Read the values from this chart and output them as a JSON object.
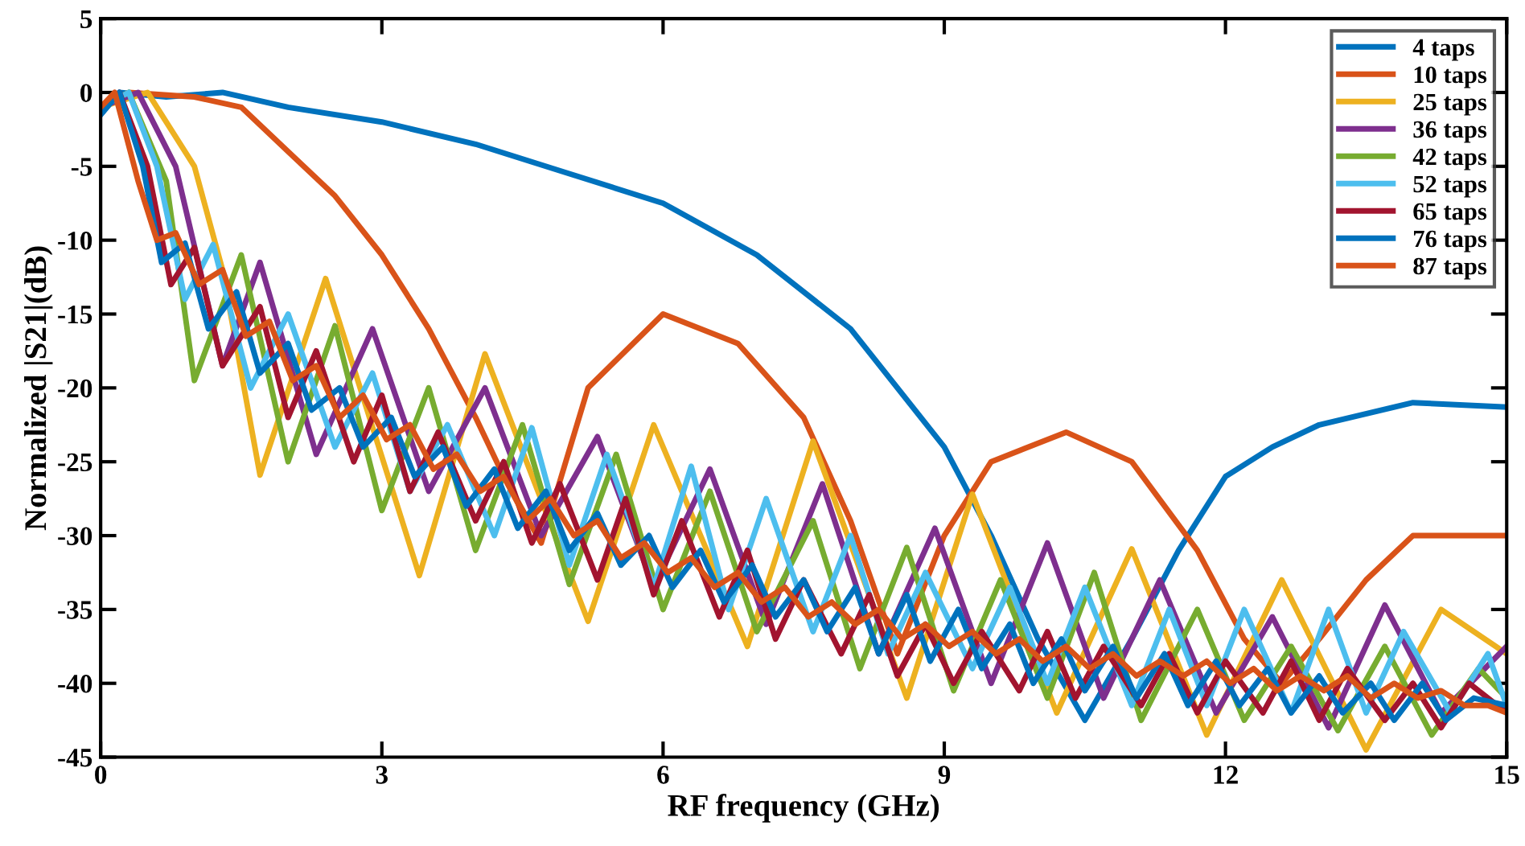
{
  "chart_data": {
    "type": "line",
    "xlabel": "RF frequency (GHz)",
    "ylabel": "Normalized |S21|(dB)",
    "xlim": [
      0,
      15
    ],
    "ylim": [
      -45,
      5
    ],
    "xticks": [
      0,
      3,
      6,
      9,
      12,
      15
    ],
    "yticks": [
      -45,
      -40,
      -35,
      -30,
      -25,
      -20,
      -15,
      -10,
      -5,
      0,
      5
    ],
    "grid": false,
    "legend": "top right",
    "marker": "none",
    "line_style": "solid",
    "series": [
      {
        "name": "4 taps",
        "color": "#0072bd",
        "x": [
          0,
          0.2,
          0.7,
          1.3,
          2,
          3,
          4,
          5,
          6,
          7,
          8,
          9,
          9.5,
          10,
          10.5,
          11,
          11.5,
          12,
          12.5,
          13,
          14,
          15
        ],
        "values": [
          -1.5,
          0,
          -0.3,
          0,
          -1,
          -2,
          -3.5,
          -5.5,
          -7.5,
          -11,
          -16,
          -24,
          -30,
          -37,
          -42.5,
          -37,
          -31,
          -26,
          -24,
          -22.5,
          -21,
          -21.3
        ]
      },
      {
        "name": "10 taps",
        "color": "#d95319",
        "x": [
          0,
          0.3,
          1,
          1.5,
          2,
          2.5,
          3,
          3.5,
          4,
          4.3,
          4.7,
          5.2,
          6,
          6.8,
          7.5,
          8,
          8.5,
          9,
          9.5,
          10.3,
          11,
          11.7,
          12.2,
          12.6,
          13,
          13.5,
          14,
          15
        ],
        "values": [
          -1,
          0,
          -0.3,
          -1,
          -4,
          -7,
          -11,
          -16,
          -22,
          -26,
          -30.5,
          -20,
          -15,
          -17,
          -22,
          -29,
          -38,
          -30,
          -25,
          -23,
          -25,
          -31,
          -37,
          -40,
          -37,
          -33,
          -30,
          -30
        ]
      },
      {
        "name": "25 taps",
        "color": "#edb120",
        "x": [
          0,
          0.5,
          1,
          1.3,
          1.7,
          2.4,
          3.4,
          4.1,
          5.2,
          5.9,
          6.9,
          7.6,
          8.6,
          9.3,
          10.2,
          11,
          11.8,
          12.6,
          13.5,
          14.3,
          15
        ],
        "values": [
          -1,
          0,
          -5,
          -12,
          -25.9,
          -12.6,
          -32.7,
          -17.7,
          -35.8,
          -22.5,
          -37.5,
          -23.6,
          -41,
          -27.2,
          -42,
          -30.9,
          -43.5,
          -33,
          -44.5,
          -35,
          -38
        ]
      },
      {
        "name": "36 taps",
        "color": "#7e2f8e",
        "x": [
          0,
          0.4,
          0.8,
          1.3,
          1.7,
          2.3,
          2.9,
          3.5,
          4.1,
          4.7,
          5.3,
          5.9,
          6.5,
          7.1,
          7.7,
          8.3,
          8.9,
          9.5,
          10.1,
          10.7,
          11.3,
          11.9,
          12.5,
          13.1,
          13.7,
          14.3,
          15
        ],
        "values": [
          -1,
          0,
          -5,
          -18.5,
          -11.5,
          -24.5,
          -16,
          -27,
          -20,
          -30,
          -23.3,
          -33.5,
          -25.5,
          -36,
          -26.5,
          -38,
          -29.5,
          -40,
          -30.5,
          -41,
          -33,
          -42,
          -35.5,
          -43,
          -34.7,
          -42,
          -37.5
        ]
      },
      {
        "name": "42 taps",
        "color": "#77ac30",
        "x": [
          0,
          0.3,
          0.7,
          1,
          1.5,
          2,
          2.5,
          3,
          3.5,
          4,
          4.5,
          5,
          5.5,
          6,
          6.5,
          7,
          7.6,
          8.1,
          8.6,
          9.1,
          9.6,
          10.1,
          10.6,
          11.1,
          11.7,
          12.2,
          12.7,
          13.2,
          13.7,
          14.2,
          14.7,
          15
        ],
        "values": [
          -1,
          0,
          -6,
          -19.5,
          -11,
          -25,
          -15.8,
          -28.3,
          -20,
          -31,
          -22.5,
          -33.3,
          -24.5,
          -35,
          -27,
          -36.5,
          -29,
          -39,
          -30.8,
          -40.5,
          -33,
          -41,
          -32.5,
          -42.5,
          -35,
          -42.5,
          -37.5,
          -43.2,
          -37.5,
          -43.5,
          -39,
          -41
        ]
      },
      {
        "name": "52 taps",
        "color": "#4dbeee",
        "x": [
          0,
          0.3,
          0.6,
          0.9,
          1.2,
          1.6,
          2,
          2.5,
          2.9,
          3.3,
          3.7,
          4.2,
          4.6,
          5,
          5.4,
          5.9,
          6.3,
          6.7,
          7.1,
          7.6,
          8,
          8.4,
          8.8,
          9.3,
          9.7,
          10.1,
          10.5,
          11,
          11.4,
          11.8,
          12.2,
          12.7,
          13.1,
          13.5,
          13.9,
          14.4,
          14.8,
          15
        ],
        "values": [
          -1,
          0,
          -5,
          -14,
          -10.3,
          -20,
          -15,
          -24,
          -19,
          -27,
          -22.5,
          -30,
          -22.7,
          -32,
          -24.5,
          -33.5,
          -25.3,
          -35,
          -27.5,
          -36.5,
          -30,
          -38,
          -32.5,
          -39,
          -33.5,
          -40,
          -33.5,
          -41.5,
          -35,
          -41.5,
          -35,
          -42,
          -35,
          -42,
          -36.5,
          -42,
          -38,
          -41.5
        ]
      },
      {
        "name": "65 taps",
        "color": "#a2142f",
        "x": [
          0,
          0.2,
          0.5,
          0.75,
          1,
          1.3,
          1.7,
          2,
          2.3,
          2.7,
          3,
          3.3,
          3.6,
          4,
          4.3,
          4.6,
          4.9,
          5.3,
          5.6,
          5.9,
          6.2,
          6.6,
          6.9,
          7.2,
          7.5,
          7.9,
          8.2,
          8.5,
          8.8,
          9.1,
          9.4,
          9.8,
          10.1,
          10.4,
          10.7,
          11.1,
          11.4,
          11.7,
          12,
          12.4,
          12.7,
          13,
          13.3,
          13.7,
          14,
          14.3,
          14.6,
          15
        ],
        "values": [
          -1,
          0,
          -5,
          -13,
          -10.5,
          -18.5,
          -14.5,
          -22,
          -17.5,
          -25,
          -20.5,
          -27,
          -23,
          -29,
          -25,
          -30.5,
          -26.5,
          -33,
          -27.5,
          -34,
          -29,
          -35.5,
          -31,
          -37,
          -33,
          -38,
          -34,
          -39.5,
          -36,
          -40,
          -36.5,
          -40.5,
          -36.5,
          -41,
          -37.5,
          -41.5,
          -38,
          -42,
          -38.5,
          -42,
          -38.5,
          -42.5,
          -39,
          -42.5,
          -40,
          -43,
          -40,
          -42
        ]
      },
      {
        "name": "76 taps",
        "color": "#0072bd",
        "x": [
          0,
          0.2,
          0.45,
          0.65,
          0.9,
          1.15,
          1.45,
          1.7,
          2,
          2.25,
          2.55,
          2.8,
          3.1,
          3.35,
          3.65,
          3.9,
          4.2,
          4.45,
          4.75,
          5,
          5.3,
          5.55,
          5.85,
          6.1,
          6.4,
          6.65,
          6.95,
          7.2,
          7.5,
          7.75,
          8.05,
          8.3,
          8.6,
          8.85,
          9.15,
          9.4,
          9.7,
          9.95,
          10.25,
          10.5,
          10.8,
          11.05,
          11.35,
          11.6,
          11.9,
          12.15,
          12.45,
          12.7,
          13,
          13.25,
          13.55,
          13.8,
          14.1,
          14.35,
          14.65,
          15
        ],
        "values": [
          -1.5,
          0,
          -5,
          -11.5,
          -10.2,
          -16,
          -13.5,
          -19,
          -17,
          -21.5,
          -20,
          -24,
          -22,
          -26,
          -24,
          -28,
          -25.5,
          -29.5,
          -27,
          -31,
          -28.5,
          -32,
          -30,
          -33.5,
          -31,
          -34.5,
          -32,
          -35.5,
          -33,
          -36.5,
          -33.5,
          -38,
          -34,
          -38.5,
          -35,
          -39,
          -36,
          -40,
          -37,
          -40.5,
          -37.5,
          -41,
          -38,
          -41.5,
          -38.5,
          -41.5,
          -39,
          -42,
          -39.5,
          -42,
          -40,
          -42.5,
          -40,
          -42.5,
          -41,
          -41.5
        ]
      },
      {
        "name": "87 taps",
        "color": "#d95319",
        "x": [
          0,
          0.15,
          0.4,
          0.6,
          0.8,
          1.05,
          1.3,
          1.55,
          1.8,
          2.05,
          2.3,
          2.55,
          2.8,
          3.05,
          3.3,
          3.55,
          3.8,
          4.05,
          4.3,
          4.55,
          4.8,
          5.05,
          5.3,
          5.55,
          5.8,
          6.05,
          6.3,
          6.55,
          6.8,
          7.05,
          7.3,
          7.55,
          7.8,
          8.05,
          8.3,
          8.55,
          8.8,
          9.05,
          9.3,
          9.55,
          9.8,
          10.05,
          10.3,
          10.55,
          10.8,
          11.05,
          11.3,
          11.55,
          11.8,
          12.05,
          12.3,
          12.55,
          12.8,
          13.05,
          13.3,
          13.55,
          13.8,
          14.05,
          14.3,
          14.55,
          14.8,
          15
        ],
        "values": [
          -1,
          0,
          -6,
          -10,
          -9.5,
          -13,
          -12,
          -16.5,
          -15.5,
          -19.5,
          -18.5,
          -22,
          -20.5,
          -23.5,
          -22.5,
          -25.5,
          -24.5,
          -27,
          -26,
          -29,
          -27.5,
          -30,
          -29,
          -31.5,
          -30.5,
          -32.5,
          -31.5,
          -33.5,
          -32.5,
          -34.5,
          -33.5,
          -35.5,
          -34.5,
          -36,
          -35,
          -37,
          -36,
          -37.5,
          -36.5,
          -38,
          -37,
          -38.5,
          -37.5,
          -39,
          -38,
          -39.5,
          -38.5,
          -39.5,
          -38.5,
          -40,
          -39,
          -40.5,
          -39.5,
          -40.5,
          -39.5,
          -41,
          -40,
          -41,
          -40.5,
          -41.5,
          -41.5,
          -42
        ]
      }
    ]
  }
}
